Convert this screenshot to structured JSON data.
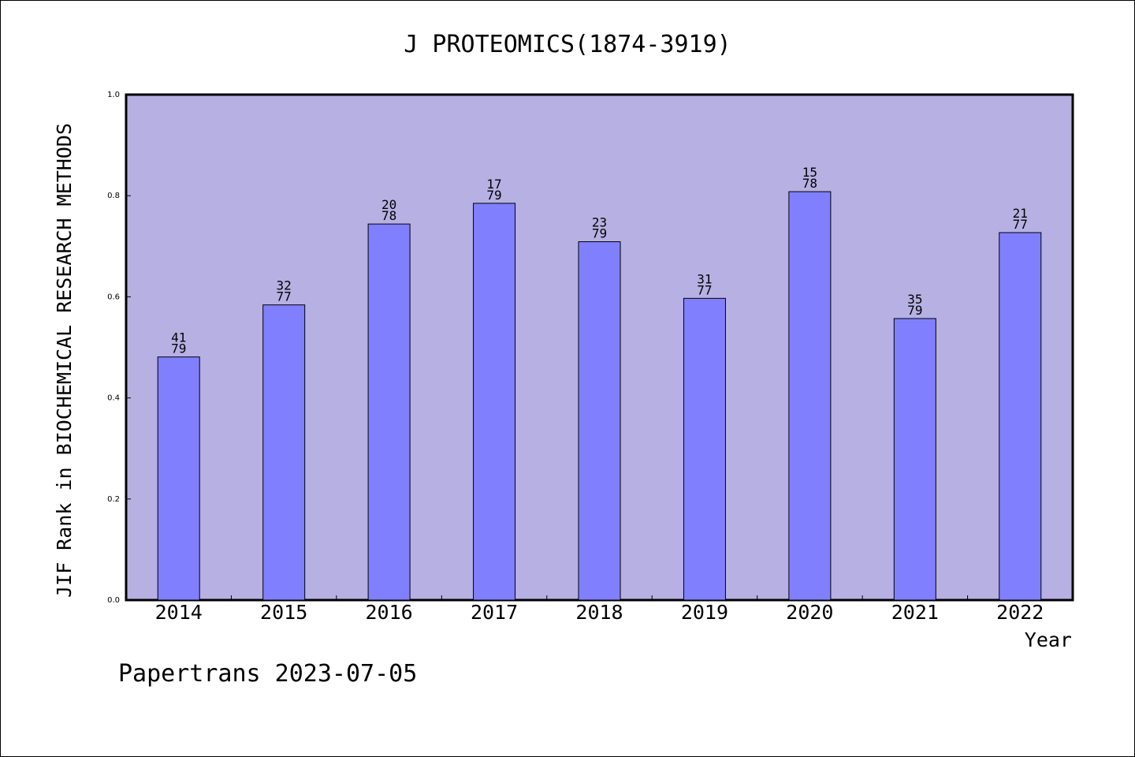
{
  "chart_data": {
    "type": "bar",
    "title": "J PROTEOMICS(1874-3919)",
    "xlabel": "Year",
    "ylabel": "JIF Rank in BIOCHEMICAL RESEARCH METHODS",
    "ylim": [
      0.0,
      1.0
    ],
    "yticks": [
      "0.0",
      "0.2",
      "0.4",
      "0.6",
      "0.8",
      "1.0"
    ],
    "categories": [
      "2014",
      "2015",
      "2016",
      "2017",
      "2018",
      "2019",
      "2020",
      "2021",
      "2022"
    ],
    "values": [
      0.481,
      0.584,
      0.744,
      0.785,
      0.709,
      0.597,
      0.808,
      0.557,
      0.727
    ],
    "rank_labels": [
      [
        "41",
        "79"
      ],
      [
        "32",
        "77"
      ],
      [
        "20",
        "78"
      ],
      [
        "17",
        "79"
      ],
      [
        "23",
        "79"
      ],
      [
        "31",
        "77"
      ],
      [
        "15",
        "78"
      ],
      [
        "35",
        "79"
      ],
      [
        "21",
        "77"
      ]
    ],
    "grid": false,
    "colors": {
      "plot_background": "#b6b0e3",
      "bar_fill": "#8080ff",
      "bar_stroke": "#000000"
    }
  },
  "footer": "Papertrans 2023-07-05"
}
